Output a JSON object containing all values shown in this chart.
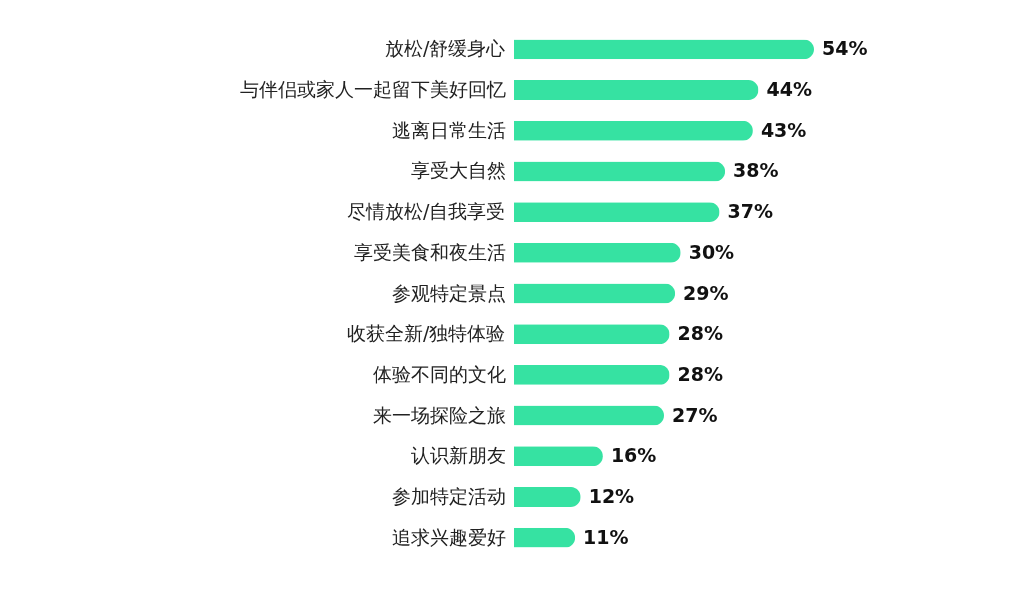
{
  "chart_data": {
    "type": "bar",
    "orientation": "horizontal",
    "categories": [
      "放松/舒缓身心",
      "与伴侣或家人一起留下美好回忆",
      "逃离日常生活",
      "享受大自然",
      "尽情放松/自我享受",
      "享受美食和夜生活",
      "参观特定景点",
      "收获全新/独特体验",
      "体验不同的文化",
      "来一场探险之旅",
      "认识新朋友",
      "参加特定活动",
      "追求兴趣爱好"
    ],
    "values": [
      54,
      44,
      43,
      38,
      37,
      30,
      29,
      28,
      28,
      27,
      16,
      12,
      11
    ],
    "value_labels": [
      "54%",
      "44%",
      "43%",
      "38%",
      "37%",
      "30%",
      "29%",
      "28%",
      "28%",
      "27%",
      "16%",
      "12%",
      "11%"
    ],
    "color": "#36e2a2"
  }
}
